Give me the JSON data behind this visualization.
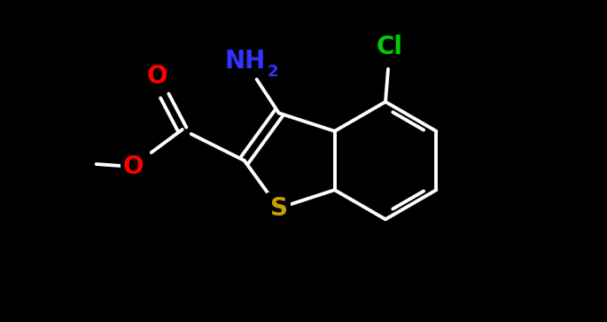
{
  "background_color": "#000000",
  "bond_color": "#ffffff",
  "bond_width": 2.8,
  "atoms": {
    "S": {
      "color": "#c8a000",
      "fontsize": 20
    },
    "O": {
      "color": "#ff0000",
      "fontsize": 20
    },
    "N": {
      "color": "#3333ff",
      "fontsize": 20
    },
    "Cl": {
      "color": "#00cc00",
      "fontsize": 20
    }
  },
  "figsize": [
    6.85,
    3.63
  ],
  "dpi": 100
}
